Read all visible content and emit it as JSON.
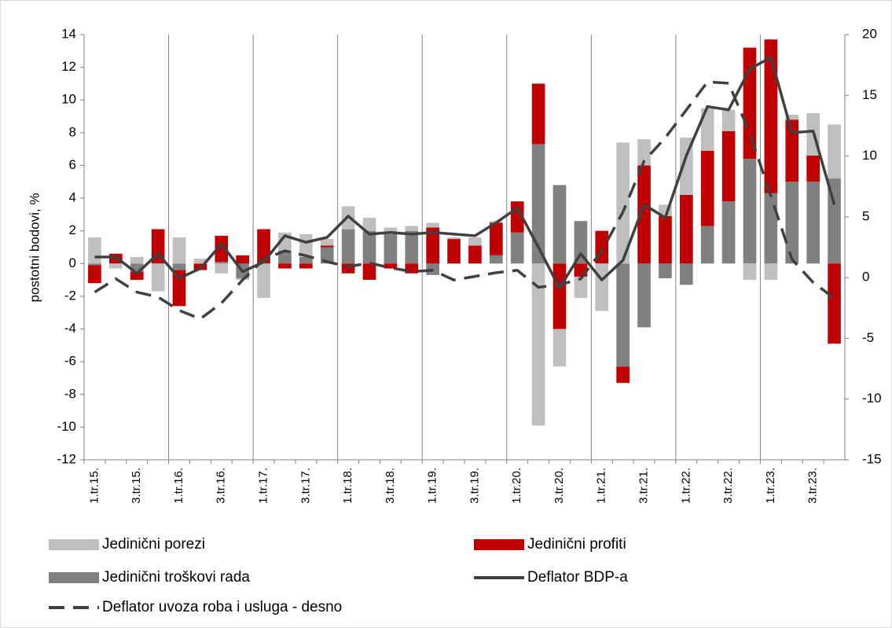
{
  "chart_data": {
    "type": "bar",
    "y_label": "postotni bodovi, %",
    "categories": [
      "1.tr.15.",
      null,
      "3.tr.15.",
      null,
      "1.tr.16.",
      null,
      "3.tr.16.",
      null,
      "1.tr.17.",
      null,
      "3.tr.17.",
      null,
      "1.tr.18.",
      null,
      "3.tr.18.",
      null,
      "1.tr.19.",
      null,
      "3.tr.19.",
      null,
      "1.tr.20.",
      null,
      "3.tr.20.",
      null,
      "1.tr.21.",
      null,
      "3.tr.21.",
      null,
      "1.tr.22.",
      null,
      "3.tr.22.",
      null,
      "1.tr.23.",
      null,
      "3.tr.23.",
      null
    ],
    "series": [
      {
        "name": "Jedinični porezi",
        "type": "bar",
        "color": "#bfbfbf",
        "values": [
          1.6,
          -0.3,
          0.4,
          -1.7,
          1.6,
          0.3,
          -0.6,
          -0.1,
          -2.1,
          1.1,
          1.4,
          0.4,
          1.4,
          0.8,
          0.4,
          0.3,
          0.3,
          0.1,
          0.5,
          0.1,
          0,
          -9.9,
          -2.3,
          -1.3,
          -2.9,
          7.4,
          1.6,
          0.7,
          3.5,
          2.6,
          1.3,
          -1.0,
          -1.0,
          0.3,
          2.6,
          3.3
        ]
      },
      {
        "name": "Jedinični profiti",
        "type": "bar",
        "color": "#c00000",
        "values": [
          -1.1,
          0.6,
          -0.5,
          2.1,
          -2.2,
          -0.4,
          1.6,
          0.5,
          2.1,
          -0.3,
          -0.3,
          0.1,
          -0.6,
          -1.0,
          -0.3,
          -0.6,
          2.2,
          1.5,
          1.1,
          2.0,
          1.9,
          3.7,
          -4.0,
          -0.8,
          2.0,
          -1.0,
          6.0,
          2.9,
          4.2,
          4.6,
          4.3,
          6.8,
          9.4,
          3.8,
          1.6,
          -4.9
        ]
      },
      {
        "name": "Jedinični troškovi rada",
        "type": "bar",
        "color": "#808080",
        "values": [
          -0.1,
          0,
          -0.5,
          0,
          -0.4,
          0,
          0.1,
          -0.9,
          0,
          0.8,
          0.4,
          1.0,
          2.1,
          2.0,
          1.8,
          2.0,
          -0.7,
          0,
          0,
          0.5,
          1.9,
          7.3,
          4.8,
          2.6,
          0,
          -6.3,
          -3.9,
          -0.9,
          -1.3,
          2.3,
          3.8,
          6.4,
          4.3,
          5.0,
          5.0,
          5.2
        ]
      },
      {
        "name": "Deflator BDP-a",
        "type": "line",
        "color": "#404040",
        "values": [
          0.4,
          0.4,
          -0.6,
          0.6,
          -0.9,
          -0.3,
          1.2,
          -0.5,
          0.1,
          1.7,
          1.3,
          1.6,
          2.9,
          1.8,
          1.9,
          1.8,
          1.9,
          1.8,
          1.7,
          2.5,
          3.4,
          1.0,
          -1.5,
          0.6,
          -1.0,
          0.2,
          3.6,
          2.8,
          6.6,
          9.6,
          9.4,
          11.9,
          12.6,
          8.0,
          8.1,
          3.6
        ]
      },
      {
        "name": "Deflator uvoza roba i usluga - desno",
        "type": "line",
        "dashed": true,
        "axis": "y2",
        "color": "#404040",
        "values": [
          -1.2,
          -0.1,
          -1.2,
          -1.6,
          -2.7,
          -3.4,
          -2.1,
          -0.2,
          1.5,
          2.2,
          1.8,
          1.3,
          0.9,
          1.2,
          0.8,
          0.5,
          0.6,
          -0.2,
          0.1,
          0.4,
          0.6,
          -0.8,
          -0.6,
          -0.1,
          2.2,
          5.4,
          9.6,
          11.5,
          13.8,
          16.1,
          16.0,
          11.9,
          6.7,
          1.5,
          -0.4,
          -1.7
        ]
      }
    ],
    "ylim": [
      -12,
      14
    ],
    "yticks": [
      -12,
      -10,
      -8,
      -6,
      -4,
      -2,
      0,
      2,
      4,
      6,
      8,
      10,
      12,
      14
    ],
    "y2lim": [
      -15,
      20
    ],
    "y2ticks": [
      -15,
      -10,
      -5,
      0,
      5,
      10,
      15,
      20
    ]
  }
}
